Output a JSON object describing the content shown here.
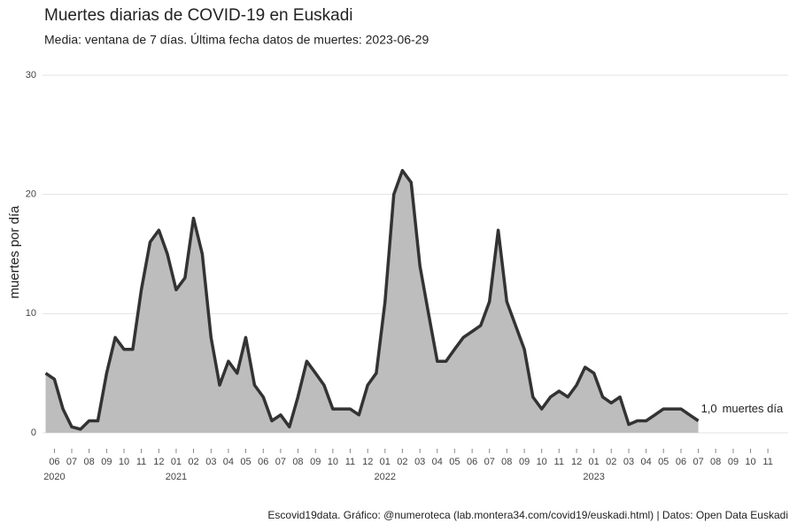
{
  "chart_data": {
    "type": "area",
    "title": "Muertes diarias de COVID-19 en Euskadi",
    "subtitle": "Media: ventana de 7 días. Última fecha datos de muertes: 2023-06-29",
    "y_label": "muertes por día",
    "caption": "Escovid19data. Gráfico: @numeroteca (lab.montera34.com/covid19/euskadi.html) | Datos: Open Data Euskadi",
    "color": "#333333",
    "fill": "#bdbdbd",
    "grid": true,
    "x": [
      2020.375,
      2020.417,
      2020.458,
      2020.5,
      2020.542,
      2020.583,
      2020.625,
      2020.667,
      2020.708,
      2020.75,
      2020.792,
      2020.833,
      2020.875,
      2020.917,
      2020.958,
      2021.0,
      2021.042,
      2021.083,
      2021.125,
      2021.167,
      2021.208,
      2021.25,
      2021.292,
      2021.333,
      2021.375,
      2021.417,
      2021.458,
      2021.5,
      2021.542,
      2021.583,
      2021.625,
      2021.667,
      2021.708,
      2021.75,
      2021.792,
      2021.833,
      2021.875,
      2021.917,
      2021.958,
      2022.0,
      2022.042,
      2022.083,
      2022.125,
      2022.167,
      2022.208,
      2022.25,
      2022.292,
      2022.333,
      2022.375,
      2022.417,
      2022.458,
      2022.5,
      2022.542,
      2022.583,
      2022.625,
      2022.667,
      2022.708,
      2022.75,
      2022.792,
      2022.833,
      2022.875,
      2022.917,
      2022.958,
      2023.0,
      2023.042,
      2023.083,
      2023.125,
      2023.167,
      2023.208,
      2023.25,
      2023.292,
      2023.333,
      2023.375,
      2023.417,
      2023.458,
      2023.5
    ],
    "values": [
      5,
      4.5,
      2,
      0.5,
      0.3,
      1,
      1,
      5,
      8,
      7,
      7,
      12,
      16,
      17,
      15,
      12,
      13,
      18,
      15,
      8,
      4,
      6,
      5,
      8,
      4,
      3,
      1,
      1.5,
      0.5,
      3,
      6,
      5,
      4,
      2,
      2,
      2,
      1.5,
      4,
      5,
      11,
      20,
      22,
      21,
      14,
      10,
      6,
      6,
      7,
      8,
      8.5,
      9,
      11,
      17,
      11,
      9,
      7,
      3,
      2,
      3,
      3.5,
      3,
      4,
      5.5,
      5,
      3,
      2.5,
      3,
      0.7,
      1,
      1,
      1.5,
      2,
      2,
      2,
      1.5,
      1
    ],
    "xlim": [
      2020.36,
      2023.93
    ],
    "ylim": [
      0,
      30
    ],
    "yticks": [
      0,
      10,
      20,
      30
    ],
    "xticks": [
      {
        "value": 2020.417,
        "label": "06"
      },
      {
        "value": 2020.5,
        "label": "07"
      },
      {
        "value": 2020.583,
        "label": "08"
      },
      {
        "value": 2020.667,
        "label": "09"
      },
      {
        "value": 2020.75,
        "label": "10"
      },
      {
        "value": 2020.833,
        "label": "11"
      },
      {
        "value": 2020.917,
        "label": "12"
      },
      {
        "value": 2021.0,
        "label": "01"
      },
      {
        "value": 2021.083,
        "label": "02"
      },
      {
        "value": 2021.167,
        "label": "03"
      },
      {
        "value": 2021.25,
        "label": "04"
      },
      {
        "value": 2021.333,
        "label": "05"
      },
      {
        "value": 2021.417,
        "label": "06"
      },
      {
        "value": 2021.5,
        "label": "07"
      },
      {
        "value": 2021.583,
        "label": "08"
      },
      {
        "value": 2021.667,
        "label": "09"
      },
      {
        "value": 2021.75,
        "label": "10"
      },
      {
        "value": 2021.833,
        "label": "11"
      },
      {
        "value": 2021.917,
        "label": "12"
      },
      {
        "value": 2022.0,
        "label": "01"
      },
      {
        "value": 2022.083,
        "label": "02"
      },
      {
        "value": 2022.167,
        "label": "03"
      },
      {
        "value": 2022.25,
        "label": "04"
      },
      {
        "value": 2022.333,
        "label": "05"
      },
      {
        "value": 2022.417,
        "label": "06"
      },
      {
        "value": 2022.5,
        "label": "07"
      },
      {
        "value": 2022.583,
        "label": "08"
      },
      {
        "value": 2022.667,
        "label": "09"
      },
      {
        "value": 2022.75,
        "label": "10"
      },
      {
        "value": 2022.833,
        "label": "11"
      },
      {
        "value": 2022.917,
        "label": "12"
      },
      {
        "value": 2023.0,
        "label": "01"
      },
      {
        "value": 2023.083,
        "label": "02"
      },
      {
        "value": 2023.167,
        "label": "03"
      },
      {
        "value": 2023.25,
        "label": "04"
      },
      {
        "value": 2023.333,
        "label": "05"
      },
      {
        "value": 2023.417,
        "label": "06"
      },
      {
        "value": 2023.5,
        "label": "07"
      },
      {
        "value": 2023.583,
        "label": "08"
      },
      {
        "value": 2023.667,
        "label": "09"
      },
      {
        "value": 2023.75,
        "label": "10"
      },
      {
        "value": 2023.833,
        "label": "11"
      }
    ],
    "year_labels": [
      {
        "value": 2020.417,
        "label": "2020"
      },
      {
        "value": 2021.0,
        "label": "2021"
      },
      {
        "value": 2022.0,
        "label": "2022"
      },
      {
        "value": 2023.0,
        "label": "2023"
      }
    ],
    "annotation": {
      "value": 1.0,
      "label": "1,0",
      "text": "muertes día"
    }
  }
}
